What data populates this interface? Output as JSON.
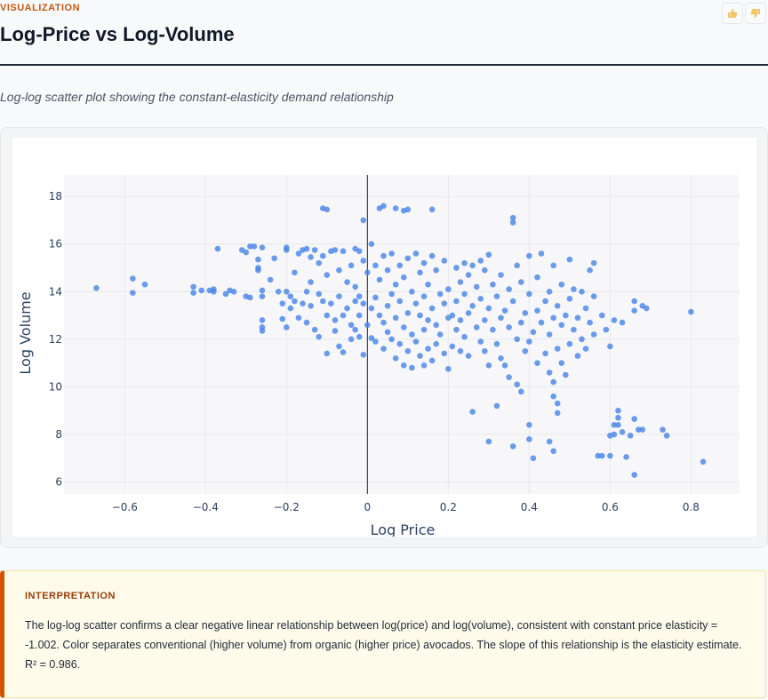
{
  "header": {
    "kicker": "VISUALIZATION",
    "title": "Log-Price vs Log-Volume",
    "thumbs_up_icon": "thumbs-up-icon",
    "thumbs_down_icon": "thumbs-down-icon"
  },
  "subtitle": "Log-log scatter plot showing the constant-elasticity demand relationship",
  "chart_data": {
    "type": "scatter",
    "title": "",
    "xlabel": "Log Price",
    "ylabel": "Log Volume",
    "xlim": [
      -0.75,
      0.92
    ],
    "ylim": [
      5.5,
      18.9
    ],
    "xticks": [
      -0.6,
      -0.4,
      -0.2,
      0,
      0.2,
      0.4,
      0.6,
      0.8
    ],
    "xtick_labels": [
      "−0.6",
      "−0.4",
      "−0.2",
      "0",
      "0.2",
      "0.4",
      "0.6",
      "0.8"
    ],
    "yticks": [
      6,
      8,
      10,
      12,
      14,
      16,
      18
    ],
    "ytick_labels": [
      "6",
      "8",
      "10",
      "12",
      "14",
      "16",
      "18"
    ],
    "grid": true,
    "marker_color": "#4a86e8",
    "points": [
      [
        -0.67,
        14.15
      ],
      [
        -0.58,
        14.55
      ],
      [
        -0.58,
        13.95
      ],
      [
        -0.55,
        14.3
      ],
      [
        -0.43,
        14.2
      ],
      [
        -0.43,
        13.95
      ],
      [
        -0.41,
        14.05
      ],
      [
        -0.39,
        14.05
      ],
      [
        -0.38,
        14.1
      ],
      [
        -0.38,
        14.0
      ],
      [
        -0.37,
        15.8
      ],
      [
        -0.35,
        13.9
      ],
      [
        -0.34,
        14.05
      ],
      [
        -0.33,
        14.0
      ],
      [
        -0.31,
        15.75
      ],
      [
        -0.3,
        15.65
      ],
      [
        -0.3,
        13.8
      ],
      [
        -0.29,
        15.9
      ],
      [
        -0.29,
        13.75
      ],
      [
        -0.28,
        15.9
      ],
      [
        -0.27,
        15.35
      ],
      [
        -0.27,
        15.0
      ],
      [
        -0.27,
        14.9
      ],
      [
        -0.26,
        15.85
      ],
      [
        -0.26,
        14.05
      ],
      [
        -0.26,
        13.8
      ],
      [
        -0.26,
        12.8
      ],
      [
        -0.26,
        12.5
      ],
      [
        -0.26,
        12.35
      ],
      [
        -0.24,
        14.5
      ],
      [
        -0.23,
        15.4
      ],
      [
        -0.22,
        14.0
      ],
      [
        -0.21,
        13.5
      ],
      [
        -0.21,
        12.85
      ],
      [
        -0.2,
        15.85
      ],
      [
        -0.2,
        15.75
      ],
      [
        -0.2,
        14.0
      ],
      [
        -0.2,
        12.5
      ],
      [
        -0.19,
        13.8
      ],
      [
        -0.19,
        13.3
      ],
      [
        -0.18,
        14.8
      ],
      [
        -0.18,
        13.6
      ],
      [
        -0.17,
        15.6
      ],
      [
        -0.17,
        12.9
      ],
      [
        -0.16,
        15.75
      ],
      [
        -0.16,
        13.5
      ],
      [
        -0.15,
        15.8
      ],
      [
        -0.15,
        14.0
      ],
      [
        -0.15,
        12.7
      ],
      [
        -0.14,
        15.45
      ],
      [
        -0.14,
        14.4
      ],
      [
        -0.14,
        13.4
      ],
      [
        -0.13,
        15.75
      ],
      [
        -0.13,
        12.4
      ],
      [
        -0.12,
        15.2
      ],
      [
        -0.12,
        13.9
      ],
      [
        -0.12,
        12.1
      ],
      [
        -0.11,
        17.5
      ],
      [
        -0.11,
        15.5
      ],
      [
        -0.11,
        13.6
      ],
      [
        -0.1,
        17.45
      ],
      [
        -0.1,
        14.7
      ],
      [
        -0.1,
        13.0
      ],
      [
        -0.1,
        11.4
      ],
      [
        -0.09,
        15.7
      ],
      [
        -0.09,
        13.5
      ],
      [
        -0.08,
        15.75
      ],
      [
        -0.08,
        12.8
      ],
      [
        -0.08,
        12.35
      ],
      [
        -0.07,
        14.9
      ],
      [
        -0.07,
        13.8
      ],
      [
        -0.07,
        11.7
      ],
      [
        -0.06,
        15.7
      ],
      [
        -0.06,
        13.0
      ],
      [
        -0.06,
        11.45
      ],
      [
        -0.05,
        14.4
      ],
      [
        -0.05,
        13.3
      ],
      [
        -0.04,
        15.1
      ],
      [
        -0.04,
        12.6
      ],
      [
        -0.04,
        12.0
      ],
      [
        -0.03,
        15.8
      ],
      [
        -0.03,
        14.2
      ],
      [
        -0.03,
        13.6
      ],
      [
        -0.03,
        12.4
      ],
      [
        -0.02,
        15.7
      ],
      [
        -0.02,
        13.8
      ],
      [
        -0.02,
        13.0
      ],
      [
        -0.02,
        12.1
      ],
      [
        -0.01,
        17.0
      ],
      [
        -0.01,
        15.3
      ],
      [
        -0.01,
        13.5
      ],
      [
        -0.01,
        11.35
      ],
      [
        0.0,
        14.8
      ],
      [
        0.0,
        12.6
      ],
      [
        0.01,
        13.3
      ],
      [
        0.01,
        12.05
      ],
      [
        0.01,
        16.0
      ],
      [
        0.02,
        15.1
      ],
      [
        0.02,
        13.75
      ],
      [
        0.02,
        11.9
      ],
      [
        0.03,
        17.5
      ],
      [
        0.03,
        14.5
      ],
      [
        0.03,
        13.0
      ],
      [
        0.04,
        17.6
      ],
      [
        0.04,
        15.5
      ],
      [
        0.04,
        12.7
      ],
      [
        0.04,
        11.6
      ],
      [
        0.05,
        14.9
      ],
      [
        0.05,
        13.4
      ],
      [
        0.05,
        12.3
      ],
      [
        0.06,
        15.6
      ],
      [
        0.06,
        13.9
      ],
      [
        0.06,
        12.0
      ],
      [
        0.07,
        17.5
      ],
      [
        0.07,
        14.3
      ],
      [
        0.07,
        12.9
      ],
      [
        0.07,
        11.2
      ],
      [
        0.08,
        15.1
      ],
      [
        0.08,
        13.6
      ],
      [
        0.08,
        11.8
      ],
      [
        0.09,
        17.4
      ],
      [
        0.09,
        14.6
      ],
      [
        0.09,
        12.5
      ],
      [
        0.09,
        10.9
      ],
      [
        0.1,
        17.45
      ],
      [
        0.1,
        15.4
      ],
      [
        0.1,
        13.1
      ],
      [
        0.1,
        11.5
      ],
      [
        0.11,
        14.0
      ],
      [
        0.11,
        12.2
      ],
      [
        0.11,
        10.8
      ],
      [
        0.12,
        15.6
      ],
      [
        0.12,
        13.5
      ],
      [
        0.12,
        11.9
      ],
      [
        0.13,
        14.8
      ],
      [
        0.13,
        13.0
      ],
      [
        0.13,
        11.3
      ],
      [
        0.14,
        15.2
      ],
      [
        0.14,
        13.8
      ],
      [
        0.14,
        12.4
      ],
      [
        0.14,
        10.9
      ],
      [
        0.15,
        14.3
      ],
      [
        0.15,
        12.8
      ],
      [
        0.15,
        11.6
      ],
      [
        0.16,
        17.45
      ],
      [
        0.16,
        15.5
      ],
      [
        0.16,
        13.3
      ],
      [
        0.16,
        11.1
      ],
      [
        0.17,
        14.9
      ],
      [
        0.17,
        12.6
      ],
      [
        0.17,
        11.8
      ],
      [
        0.18,
        13.9
      ],
      [
        0.18,
        12.2
      ],
      [
        0.19,
        15.3
      ],
      [
        0.19,
        13.5
      ],
      [
        0.19,
        11.4
      ],
      [
        0.2,
        14.1
      ],
      [
        0.2,
        12.9
      ],
      [
        0.2,
        10.75
      ],
      [
        0.21,
        13.0
      ],
      [
        0.21,
        11.7
      ],
      [
        0.22,
        15.0
      ],
      [
        0.22,
        13.6
      ],
      [
        0.22,
        12.4
      ],
      [
        0.23,
        14.4
      ],
      [
        0.23,
        12.8
      ],
      [
        0.23,
        11.5
      ],
      [
        0.24,
        15.2
      ],
      [
        0.24,
        13.9
      ],
      [
        0.24,
        12.1
      ],
      [
        0.25,
        14.7
      ],
      [
        0.25,
        13.1
      ],
      [
        0.25,
        11.3
      ],
      [
        0.26,
        15.1
      ],
      [
        0.26,
        13.4
      ],
      [
        0.26,
        8.95
      ],
      [
        0.27,
        14.2
      ],
      [
        0.27,
        12.5
      ],
      [
        0.28,
        15.3
      ],
      [
        0.28,
        13.7
      ],
      [
        0.28,
        11.9
      ],
      [
        0.29,
        14.9
      ],
      [
        0.29,
        12.8
      ],
      [
        0.29,
        11.5
      ],
      [
        0.3,
        15.55
      ],
      [
        0.3,
        13.3
      ],
      [
        0.3,
        10.9
      ],
      [
        0.3,
        7.7
      ],
      [
        0.31,
        14.3
      ],
      [
        0.31,
        12.4
      ],
      [
        0.32,
        13.8
      ],
      [
        0.32,
        11.8
      ],
      [
        0.32,
        9.2
      ],
      [
        0.33,
        14.7
      ],
      [
        0.33,
        12.9
      ],
      [
        0.33,
        11.2
      ],
      [
        0.34,
        13.2
      ],
      [
        0.34,
        10.9
      ],
      [
        0.35,
        14.1
      ],
      [
        0.35,
        12.5
      ],
      [
        0.35,
        10.4
      ],
      [
        0.36,
        17.1
      ],
      [
        0.36,
        16.9
      ],
      [
        0.36,
        13.6
      ],
      [
        0.36,
        7.5
      ],
      [
        0.37,
        15.1
      ],
      [
        0.37,
        12.0
      ],
      [
        0.37,
        10.1
      ],
      [
        0.38,
        14.4
      ],
      [
        0.38,
        12.7
      ],
      [
        0.38,
        9.8
      ],
      [
        0.39,
        13.1
      ],
      [
        0.39,
        11.5
      ],
      [
        0.4,
        15.5
      ],
      [
        0.4,
        13.9
      ],
      [
        0.4,
        11.9
      ],
      [
        0.4,
        8.4
      ],
      [
        0.4,
        7.8
      ],
      [
        0.41,
        12.3
      ],
      [
        0.41,
        7.0
      ],
      [
        0.42,
        14.6
      ],
      [
        0.42,
        13.2
      ],
      [
        0.42,
        11.0
      ],
      [
        0.43,
        15.6
      ],
      [
        0.43,
        12.7
      ],
      [
        0.44,
        13.6
      ],
      [
        0.44,
        11.4
      ],
      [
        0.45,
        14.0
      ],
      [
        0.45,
        12.2
      ],
      [
        0.45,
        10.6
      ],
      [
        0.45,
        7.7
      ],
      [
        0.46,
        15.1
      ],
      [
        0.46,
        12.9
      ],
      [
        0.46,
        10.2
      ],
      [
        0.46,
        9.6
      ],
      [
        0.46,
        7.3
      ],
      [
        0.47,
        13.4
      ],
      [
        0.47,
        11.6
      ],
      [
        0.47,
        9.3
      ],
      [
        0.47,
        8.9
      ],
      [
        0.48,
        14.3
      ],
      [
        0.48,
        12.6
      ],
      [
        0.48,
        11.0
      ],
      [
        0.49,
        13.0
      ],
      [
        0.49,
        10.5
      ],
      [
        0.5,
        15.35
      ],
      [
        0.5,
        13.7
      ],
      [
        0.5,
        11.8
      ],
      [
        0.51,
        14.1
      ],
      [
        0.51,
        12.4
      ],
      [
        0.52,
        12.9
      ],
      [
        0.52,
        11.3
      ],
      [
        0.53,
        14.0
      ],
      [
        0.53,
        12.0
      ],
      [
        0.54,
        13.3
      ],
      [
        0.54,
        11.6
      ],
      [
        0.55,
        14.9
      ],
      [
        0.55,
        12.7
      ],
      [
        0.56,
        15.2
      ],
      [
        0.56,
        13.8
      ],
      [
        0.56,
        12.2
      ],
      [
        0.57,
        7.1
      ],
      [
        0.58,
        13.0
      ],
      [
        0.58,
        7.1
      ],
      [
        0.59,
        12.4
      ],
      [
        0.6,
        11.7
      ],
      [
        0.6,
        7.95
      ],
      [
        0.6,
        7.1
      ],
      [
        0.61,
        12.8
      ],
      [
        0.61,
        8.4
      ],
      [
        0.61,
        8.0
      ],
      [
        0.62,
        9.0
      ],
      [
        0.62,
        8.7
      ],
      [
        0.62,
        8.4
      ],
      [
        0.63,
        12.7
      ],
      [
        0.63,
        8.1
      ],
      [
        0.64,
        7.05
      ],
      [
        0.65,
        7.95
      ],
      [
        0.66,
        13.6
      ],
      [
        0.66,
        13.2
      ],
      [
        0.66,
        8.65
      ],
      [
        0.66,
        6.3
      ],
      [
        0.67,
        8.2
      ],
      [
        0.68,
        13.4
      ],
      [
        0.68,
        8.2
      ],
      [
        0.69,
        13.3
      ],
      [
        0.73,
        8.2
      ],
      [
        0.74,
        7.95
      ],
      [
        0.8,
        13.15
      ],
      [
        0.83,
        6.85
      ]
    ]
  },
  "interpretation": {
    "label": "INTERPRETATION",
    "text": "The log-log scatter confirms a clear negative linear relationship between log(price) and log(volume), consistent with constant price elasticity = -1.002. Color separates conventional (higher volume) from organic (higher price) avocados. The slope of this relationship is the elasticity estimate. R² = 0.986."
  }
}
